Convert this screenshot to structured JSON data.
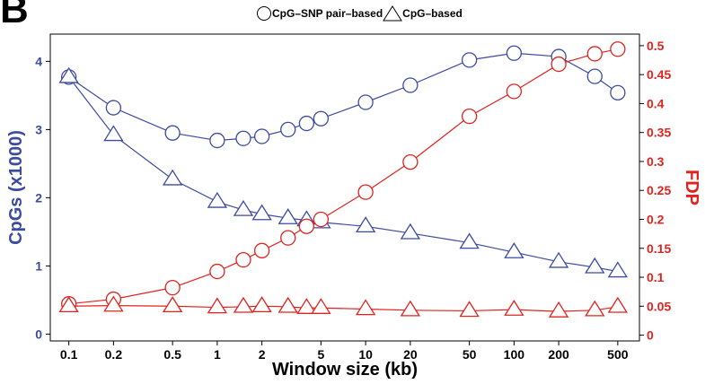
{
  "panel_label": "B",
  "chart_data": {
    "type": "line",
    "xlabel": "Window size (kb)",
    "ylabel_left": "CpGs (x1000)",
    "ylabel_right": "FDP",
    "x_scale": "log",
    "xlim": [
      0.075,
      700
    ],
    "x_ticks": [
      0.1,
      0.2,
      0.5,
      1,
      2,
      5,
      10,
      20,
      50,
      100,
      200,
      500
    ],
    "x_tick_labels": [
      "0.1",
      "0.2",
      "0.5",
      "1",
      "2",
      "5",
      "10",
      "20",
      "50",
      "100",
      "200",
      "500"
    ],
    "left_axis": {
      "lim": [
        -0.1,
        4.4
      ],
      "ticks": [
        0,
        1,
        2,
        3,
        4
      ],
      "tick_labels": [
        "0",
        "1",
        "2",
        "3",
        "4"
      ],
      "color": "#3b4ba0"
    },
    "right_axis": {
      "lim": [
        -0.01,
        0.52
      ],
      "ticks": [
        0,
        0.05,
        0.1,
        0.15,
        0.2,
        0.25,
        0.3,
        0.35,
        0.4,
        0.45,
        0.5
      ],
      "tick_labels": [
        "0",
        "0.05",
        "0.1",
        "0.15",
        "0.2",
        "0.25",
        "0.3",
        "0.35",
        "0.4",
        "0.45",
        "0.5"
      ],
      "color": "#e0231f"
    },
    "grid": false,
    "legend": {
      "placement": "top",
      "entries": [
        {
          "label": "CpG–SNP pair–based",
          "marker": "circle"
        },
        {
          "label": "CpG–based",
          "marker": "triangle"
        }
      ]
    },
    "series": [
      {
        "axis": "left",
        "marker": "circle",
        "color": "#3b4ba0",
        "x": [
          0.1,
          0.2,
          0.5,
          1,
          1.5,
          2,
          3,
          4,
          5,
          10,
          20,
          50,
          100,
          200,
          350,
          500
        ],
        "values": [
          3.77,
          3.32,
          2.95,
          2.84,
          2.87,
          2.9,
          3.0,
          3.09,
          3.16,
          3.4,
          3.65,
          4.02,
          4.12,
          4.07,
          3.78,
          3.54
        ]
      },
      {
        "axis": "left",
        "marker": "triangle",
        "color": "#3b4ba0",
        "x": [
          0.1,
          0.2,
          0.5,
          1,
          1.5,
          2,
          3,
          4,
          5,
          10,
          20,
          50,
          100,
          200,
          350,
          500
        ],
        "values": [
          3.77,
          2.92,
          2.27,
          1.94,
          1.82,
          1.76,
          1.7,
          1.67,
          1.64,
          1.58,
          1.48,
          1.34,
          1.2,
          1.06,
          0.98,
          0.92
        ]
      },
      {
        "axis": "right",
        "marker": "circle",
        "color": "#e0231f",
        "x": [
          0.1,
          0.2,
          0.5,
          1,
          1.5,
          2,
          3,
          4,
          5,
          10,
          20,
          50,
          100,
          200,
          350,
          500
        ],
        "values": [
          0.054,
          0.062,
          0.082,
          0.11,
          0.13,
          0.146,
          0.168,
          0.188,
          0.2,
          0.247,
          0.299,
          0.378,
          0.421,
          0.468,
          0.486,
          0.494
        ]
      },
      {
        "axis": "right",
        "marker": "triangle",
        "color": "#e0231f",
        "x": [
          0.1,
          0.2,
          0.5,
          1,
          1.5,
          2,
          3,
          4,
          5,
          10,
          20,
          50,
          100,
          200,
          350,
          500
        ],
        "values": [
          0.05,
          0.051,
          0.05,
          0.048,
          0.049,
          0.05,
          0.049,
          0.047,
          0.047,
          0.045,
          0.043,
          0.042,
          0.044,
          0.041,
          0.043,
          0.049
        ]
      }
    ]
  }
}
